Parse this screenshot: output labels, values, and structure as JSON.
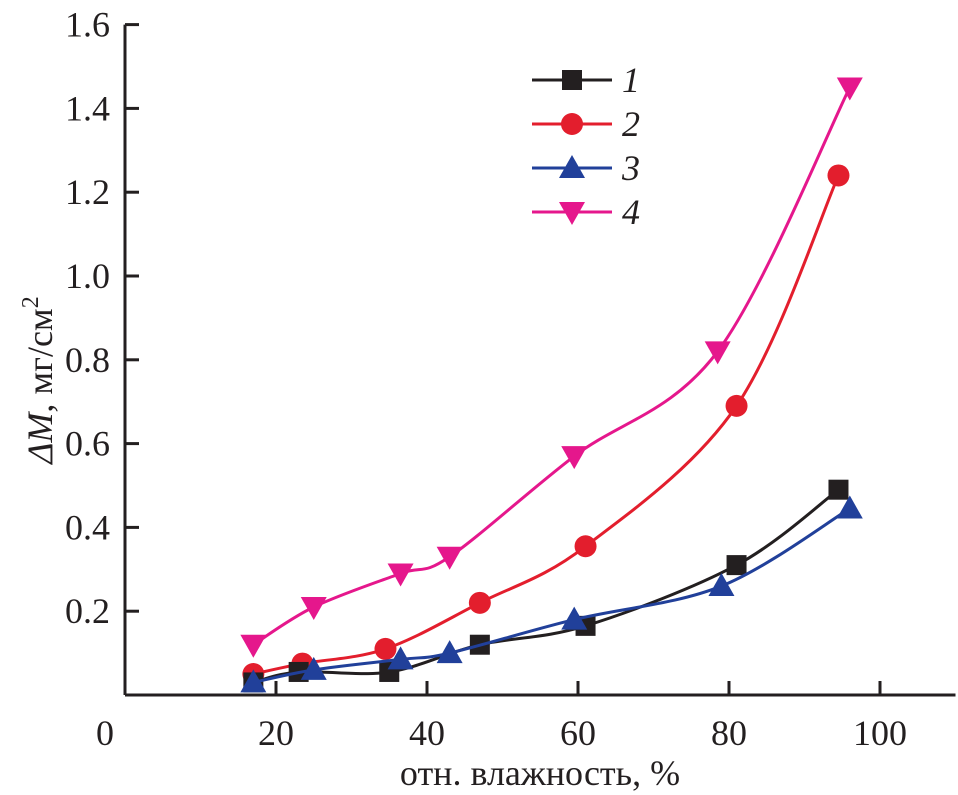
{
  "chart_data": {
    "type": "line",
    "xlabel": "отн. влажность, %",
    "ylabel_main": "ΔM",
    "ylabel_unit": ", мг/см",
    "ylabel_sup": "2",
    "xlim": [
      0,
      110
    ],
    "ylim": [
      0,
      1.6
    ],
    "xticks": [
      "0",
      "20",
      "40",
      "60",
      "80",
      "100"
    ],
    "yticks": [
      "0.2",
      "0.4",
      "0.6",
      "0.8",
      "1.0",
      "1.2",
      "1.4",
      "1.6"
    ],
    "grid": false,
    "legend_position": "top-center",
    "series": [
      {
        "name": "1",
        "color": "#231f20",
        "marker": "square",
        "x": [
          17,
          23,
          35,
          47,
          61,
          81,
          94.5
        ],
        "y": [
          0.03,
          0.055,
          0.055,
          0.12,
          0.165,
          0.31,
          0.49
        ]
      },
      {
        "name": "2",
        "color": "#e31e2d",
        "marker": "circle",
        "x": [
          17,
          23.5,
          34.5,
          47,
          61,
          81,
          94.5
        ],
        "y": [
          0.05,
          0.075,
          0.11,
          0.22,
          0.355,
          0.69,
          1.24
        ]
      },
      {
        "name": "3",
        "color": "#21409a",
        "marker": "triangle-up",
        "x": [
          17,
          25,
          36.5,
          43,
          59.5,
          79,
          96
        ],
        "y": [
          0.03,
          0.06,
          0.085,
          0.1,
          0.18,
          0.26,
          0.445
        ]
      },
      {
        "name": "4",
        "color": "#e5178c",
        "marker": "triangle-down",
        "x": [
          17,
          25,
          36.5,
          43,
          59.5,
          78.5,
          96
        ],
        "y": [
          0.12,
          0.21,
          0.29,
          0.33,
          0.57,
          0.82,
          1.45
        ]
      }
    ]
  }
}
